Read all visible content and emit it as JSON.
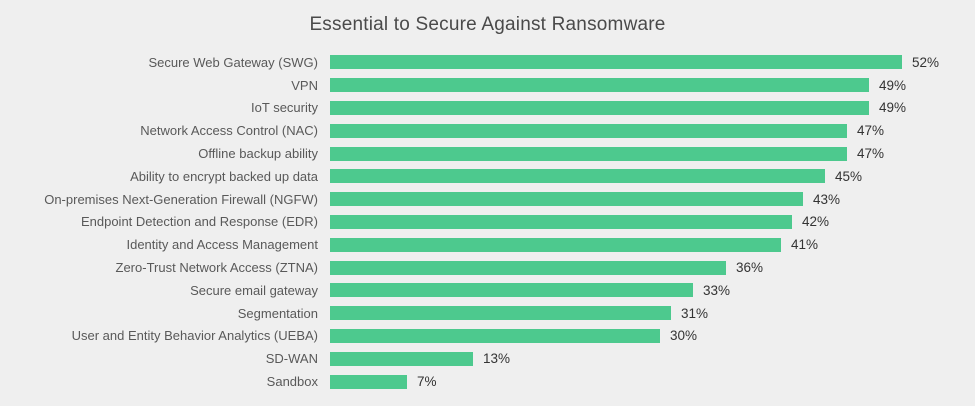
{
  "title": "Essential to Secure Against Ransomware",
  "chart_data": {
    "type": "bar",
    "orientation": "horizontal",
    "title": "Essential to Secure Against Ransomware",
    "categories": [
      "Secure Web Gateway (SWG)",
      "VPN",
      "IoT security",
      "Network Access Control (NAC)",
      "Offline backup ability",
      "Ability to encrypt backed up data",
      "On-premises Next-Generation Firewall (NGFW)",
      "Endpoint Detection and Response (EDR)",
      "Identity and Access Management",
      "Zero-Trust Network Access (ZTNA)",
      "Secure email gateway",
      "Segmentation",
      "User and Entity Behavior Analytics (UEBA)",
      "SD-WAN",
      "Sandbox"
    ],
    "values": [
      52,
      49,
      49,
      47,
      47,
      45,
      43,
      42,
      41,
      36,
      33,
      31,
      30,
      13,
      7
    ],
    "value_labels": [
      "52%",
      "49%",
      "49%",
      "47%",
      "47%",
      "45%",
      "43%",
      "42%",
      "41%",
      "36%",
      "33%",
      "31%",
      "30%",
      "13%",
      "7%"
    ],
    "xlabel": "",
    "ylabel": "",
    "xlim": [
      0,
      56
    ],
    "grid": false,
    "legend": false,
    "bar_color": "#4dc98e",
    "background_color": "#efefef",
    "value_label_position": "end-of-bar"
  }
}
